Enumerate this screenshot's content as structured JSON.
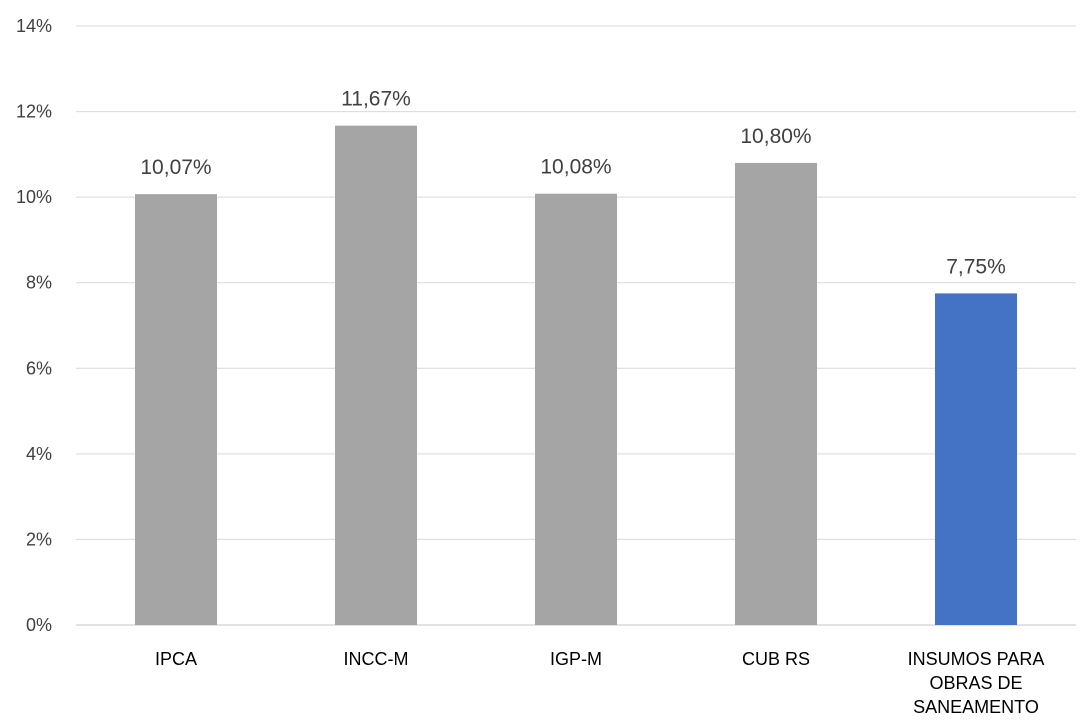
{
  "chart_data": {
    "type": "bar",
    "categories": [
      "IPCA",
      "INCC-M",
      "IGP-M",
      "CUB RS",
      "INSUMOS PARA OBRAS DE SANEAMENTO"
    ],
    "category_lines": [
      [
        "IPCA"
      ],
      [
        "INCC-M"
      ],
      [
        "IGP-M"
      ],
      [
        "CUB RS"
      ],
      [
        "INSUMOS PARA",
        "OBRAS DE",
        "SANEAMENTO"
      ]
    ],
    "values": [
      10.07,
      11.67,
      10.08,
      10.8,
      7.75
    ],
    "data_labels": [
      "10,07%",
      "11,67%",
      "10,08%",
      "10,80%",
      "7,75%"
    ],
    "title": "",
    "xlabel": "",
    "ylabel": "",
    "ylim": [
      0,
      14
    ],
    "yticks": [
      0,
      2,
      4,
      6,
      8,
      10,
      12,
      14
    ],
    "ytick_labels": [
      "0%",
      "2%",
      "4%",
      "6%",
      "8%",
      "10%",
      "12%",
      "14%"
    ],
    "grid": true,
    "legend": "none",
    "colors": {
      "default_bar": "#A5A5A5",
      "highlight_bar": "#4472C4",
      "gridline": "#D9D9D9",
      "axis_line": "#D9D9D9"
    },
    "highlight_index": 4
  }
}
